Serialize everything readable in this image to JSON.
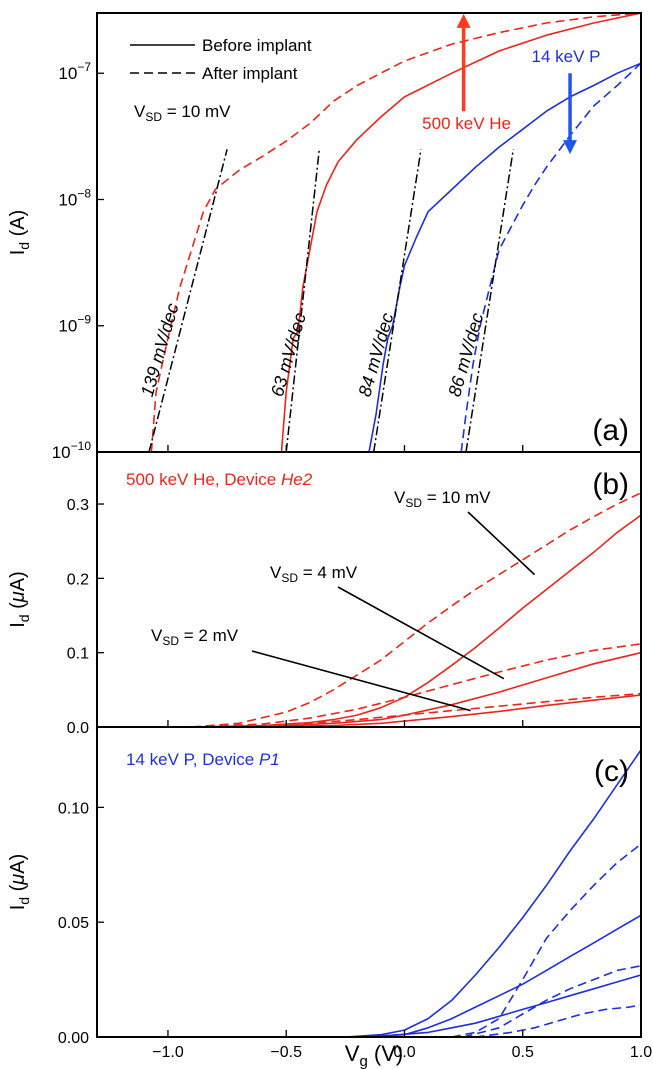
{
  "colors": {
    "red": "#e8261c",
    "blue": "#1f2fd6",
    "black": "#000000",
    "arrow_red": "#ff3b1f",
    "arrow_blue": "#1f56ee"
  },
  "chart_data": [
    {
      "panel": "(a)",
      "type": "line",
      "yscale": "log",
      "xlim": [
        -1.3,
        1.0
      ],
      "ylim": [
        1e-10,
        3e-07
      ],
      "ylabel_main": "I",
      "ylabel_sub": "d",
      "ylabel_unit": "(A)",
      "yticks": [
        {
          "value": 1e-07,
          "base": "10",
          "exp": "−7"
        },
        {
          "value": 1e-08,
          "base": "10",
          "exp": "−8"
        },
        {
          "value": 1e-09,
          "base": "10",
          "exp": "−9"
        },
        {
          "value": 1e-10,
          "base": "10",
          "exp": "−10"
        }
      ],
      "legend": [
        {
          "style": "solid",
          "label": "Before implant"
        },
        {
          "style": "dashed",
          "label": "After implant"
        }
      ],
      "vsd_note": {
        "main": "V",
        "sub": "SD",
        "rest": " = 10 mV"
      },
      "arrows": [
        {
          "label": "500 keV He",
          "direction": "up",
          "x": 0.25,
          "y_from": 5e-08,
          "y_to": 2.6e-07,
          "color": "arrow_red"
        },
        {
          "label": "14 keV P",
          "direction": "down",
          "x": 0.7,
          "y_from": 1e-07,
          "y_to": 2.6e-08,
          "color": "arrow_blue"
        }
      ],
      "series": [
        {
          "name": "He before",
          "color": "red",
          "style": "solid",
          "x": [
            -0.52,
            -0.5,
            -0.47,
            -0.45,
            -0.43,
            -0.4,
            -0.37,
            -0.33,
            -0.28,
            -0.2,
            -0.1,
            0.0,
            0.2,
            0.4,
            0.6,
            0.8,
            1.0
          ],
          "y": [
            1e-10,
            3e-10,
            8e-10,
            9e-10,
            2e-09,
            4e-09,
            8e-09,
            1.3e-08,
            2e-08,
            3e-08,
            4.5e-08,
            6.5e-08,
            1e-07,
            1.5e-07,
            2e-07,
            2.5e-07,
            3e-07
          ]
        },
        {
          "name": "He after",
          "color": "red",
          "style": "dashed",
          "x": [
            -1.07,
            -1.05,
            -1.0,
            -0.95,
            -0.9,
            -0.85,
            -0.8,
            -0.7,
            -0.6,
            -0.5,
            -0.4,
            -0.3,
            -0.2,
            -0.1,
            0.0,
            0.2,
            0.4,
            0.6,
            0.8,
            1.0
          ],
          "y": [
            1e-10,
            3e-10,
            8e-10,
            2e-09,
            4e-09,
            8e-09,
            1.2e-08,
            1.7e-08,
            2.2e-08,
            2.9e-08,
            4e-08,
            6e-08,
            8e-08,
            1e-07,
            1.25e-07,
            1.7e-07,
            2.1e-07,
            2.5e-07,
            2.8e-07,
            3e-07
          ]
        },
        {
          "name": "P before",
          "color": "blue",
          "style": "solid",
          "x": [
            -0.15,
            -0.12,
            -0.09,
            -0.07,
            -0.05,
            -0.02,
            0.0,
            0.05,
            0.1,
            0.2,
            0.3,
            0.4,
            0.5,
            0.6,
            0.7,
            0.8,
            0.9,
            1.0
          ],
          "y": [
            1e-10,
            2e-10,
            5e-10,
            8e-10,
            1e-09,
            2e-09,
            3e-09,
            5e-09,
            8e-09,
            1.2e-08,
            1.8e-08,
            2.6e-08,
            3.6e-08,
            5e-08,
            6.5e-08,
            8e-08,
            1e-07,
            1.2e-07
          ]
        },
        {
          "name": "P after",
          "color": "blue",
          "style": "dashed",
          "x": [
            0.24,
            0.26,
            0.29,
            0.32,
            0.36,
            0.4,
            0.45,
            0.5,
            0.55,
            0.6,
            0.7,
            0.8,
            0.9,
            1.0
          ],
          "y": [
            1e-10,
            2e-10,
            5e-10,
            1e-09,
            2e-09,
            4e-09,
            6e-09,
            9e-09,
            1.3e-08,
            1.8e-08,
            3.2e-08,
            5.5e-08,
            8e-08,
            1.2e-07
          ]
        },
        {
          "name": "fit 139",
          "color": "black",
          "style": "dashdot",
          "x": [
            -1.08,
            -0.75
          ],
          "y": [
            1e-10,
            2.5e-08
          ]
        },
        {
          "name": "fit 63",
          "color": "black",
          "style": "dashdot",
          "x": [
            -0.5,
            -0.36
          ],
          "y": [
            1e-10,
            2.5e-08
          ]
        },
        {
          "name": "fit 84",
          "color": "black",
          "style": "dashdot",
          "x": [
            -0.13,
            0.07
          ],
          "y": [
            1e-10,
            2.5e-08
          ]
        },
        {
          "name": "fit 86",
          "color": "black",
          "style": "dashdot",
          "x": [
            0.26,
            0.46
          ],
          "y": [
            1e-10,
            2.5e-08
          ]
        }
      ],
      "slope_labels": [
        {
          "text": "139 mV/dec",
          "x": -1.1,
          "y": 1.8e-10
        },
        {
          "text": "63 mV/dec",
          "x": -0.55,
          "y": 1.8e-10
        },
        {
          "text": "84 mV/dec",
          "x": -0.18,
          "y": 1.8e-10
        },
        {
          "text": "86 mV/dec",
          "x": 0.2,
          "y": 1.8e-10
        }
      ]
    },
    {
      "panel": "(b)",
      "type": "line",
      "xlim": [
        -1.3,
        1.0
      ],
      "ylim": [
        0,
        0.37
      ],
      "ylabel_main": "I",
      "ylabel_sub": "d",
      "ylabel_mu": "μ",
      "ylabel_unit_tail": "A)",
      "yticks": [
        {
          "value": 0.0,
          "label": "0.0"
        },
        {
          "value": 0.1,
          "label": "0.1"
        },
        {
          "value": 0.2,
          "label": "0.2"
        },
        {
          "value": 0.3,
          "label": "0.3"
        }
      ],
      "title_plain": "500 keV He, Device ",
      "title_ital": "He2",
      "annotations": [
        {
          "main": "V",
          "sub": "SD",
          "rest": " = 10 mV",
          "line_to": [
            0.55,
            0.205
          ]
        },
        {
          "main": "V",
          "sub": "SD",
          "rest": " = 4 mV",
          "line_to": [
            0.42,
            0.065
          ]
        },
        {
          "main": "V",
          "sub": "SD",
          "rest": " = 2 mV",
          "line_to": [
            0.28,
            0.022
          ]
        }
      ],
      "series": [
        {
          "name": "10 mV before",
          "color": "red",
          "style": "solid",
          "x": [
            -0.9,
            -0.6,
            -0.4,
            -0.3,
            -0.2,
            -0.1,
            0.0,
            0.1,
            0.2,
            0.3,
            0.4,
            0.5,
            0.6,
            0.7,
            0.8,
            0.9,
            1.0
          ],
          "y": [
            0.0,
            0.002,
            0.006,
            0.01,
            0.016,
            0.026,
            0.04,
            0.06,
            0.083,
            0.107,
            0.133,
            0.16,
            0.185,
            0.21,
            0.235,
            0.262,
            0.285
          ]
        },
        {
          "name": "10 mV after",
          "color": "red",
          "style": "dashed",
          "x": [
            -0.9,
            -0.7,
            -0.5,
            -0.4,
            -0.3,
            -0.2,
            -0.1,
            0.0,
            0.1,
            0.2,
            0.3,
            0.4,
            0.5,
            0.6,
            0.7,
            0.8,
            0.9,
            1.0
          ],
          "y": [
            0.0,
            0.005,
            0.02,
            0.033,
            0.05,
            0.07,
            0.09,
            0.115,
            0.14,
            0.163,
            0.185,
            0.205,
            0.225,
            0.245,
            0.265,
            0.283,
            0.3,
            0.315
          ]
        },
        {
          "name": "4 mV before",
          "color": "red",
          "style": "solid",
          "x": [
            -0.9,
            -0.5,
            -0.3,
            -0.1,
            0.0,
            0.2,
            0.4,
            0.6,
            0.8,
            1.0
          ],
          "y": [
            0.0,
            0.002,
            0.005,
            0.01,
            0.016,
            0.03,
            0.047,
            0.066,
            0.085,
            0.1
          ]
        },
        {
          "name": "4 mV after",
          "color": "red",
          "style": "dashed",
          "x": [
            -0.9,
            -0.6,
            -0.4,
            -0.2,
            0.0,
            0.2,
            0.4,
            0.6,
            0.8,
            1.0
          ],
          "y": [
            0.0,
            0.004,
            0.012,
            0.024,
            0.04,
            0.057,
            0.074,
            0.09,
            0.103,
            0.112
          ]
        },
        {
          "name": "2 mV before",
          "color": "red",
          "style": "solid",
          "x": [
            -0.9,
            -0.5,
            -0.3,
            -0.1,
            0.0,
            0.2,
            0.4,
            0.6,
            0.8,
            1.0
          ],
          "y": [
            0.0,
            0.001,
            0.002,
            0.005,
            0.008,
            0.014,
            0.021,
            0.029,
            0.036,
            0.043
          ]
        },
        {
          "name": "2 mV after",
          "color": "red",
          "style": "dashed",
          "x": [
            -0.9,
            -0.6,
            -0.4,
            -0.2,
            0.0,
            0.2,
            0.4,
            0.6,
            0.8,
            1.0
          ],
          "y": [
            0.0,
            0.002,
            0.005,
            0.01,
            0.016,
            0.022,
            0.028,
            0.034,
            0.04,
            0.045
          ]
        }
      ]
    },
    {
      "panel": "(c)",
      "type": "line",
      "xlim": [
        -1.3,
        1.0
      ],
      "ylim": [
        0,
        0.135
      ],
      "ylabel_main": "I",
      "ylabel_sub": "d",
      "ylabel_mu": "μ",
      "ylabel_unit_tail": "A)",
      "yticks": [
        {
          "value": 0.0,
          "label": "0.00"
        },
        {
          "value": 0.05,
          "label": "0.05"
        },
        {
          "value": 0.1,
          "label": "0.10"
        }
      ],
      "xticks": [
        {
          "value": -1.0,
          "label": "−1.0"
        },
        {
          "value": -0.5,
          "label": "−0.5"
        },
        {
          "value": 0.0,
          "label": "0.0"
        },
        {
          "value": 0.5,
          "label": "0.5"
        },
        {
          "value": 1.0,
          "label": "1.0"
        }
      ],
      "xlabel_main": "V",
      "xlabel_sub": "g",
      "xlabel_unit": "(V)",
      "title_plain": "14 keV P, Device ",
      "title_ital": "P1",
      "series": [
        {
          "name": "10 mV before",
          "color": "blue",
          "style": "solid",
          "x": [
            -0.25,
            -0.1,
            0.0,
            0.1,
            0.2,
            0.3,
            0.4,
            0.5,
            0.6,
            0.7,
            0.8,
            0.9,
            1.0
          ],
          "y": [
            0.0,
            0.001,
            0.003,
            0.008,
            0.016,
            0.027,
            0.039,
            0.052,
            0.066,
            0.081,
            0.095,
            0.11,
            0.125
          ]
        },
        {
          "name": "10 mV after",
          "color": "blue",
          "style": "dashed",
          "x": [
            0.2,
            0.3,
            0.4,
            0.5,
            0.6,
            0.7,
            0.8,
            0.9,
            1.0
          ],
          "y": [
            0.0,
            0.002,
            0.008,
            0.025,
            0.043,
            0.055,
            0.066,
            0.076,
            0.084
          ]
        },
        {
          "name": "4 mV before",
          "color": "blue",
          "style": "solid",
          "x": [
            -0.2,
            0.0,
            0.1,
            0.2,
            0.3,
            0.4,
            0.5,
            0.6,
            0.7,
            0.8,
            0.9,
            1.0
          ],
          "y": [
            0.0,
            0.001,
            0.004,
            0.008,
            0.013,
            0.018,
            0.023,
            0.029,
            0.035,
            0.041,
            0.047,
            0.053
          ]
        },
        {
          "name": "4 mV after",
          "color": "blue",
          "style": "dashed",
          "x": [
            0.25,
            0.4,
            0.5,
            0.6,
            0.7,
            0.8,
            0.9,
            1.0
          ],
          "y": [
            0.0,
            0.004,
            0.01,
            0.016,
            0.021,
            0.025,
            0.029,
            0.031
          ]
        },
        {
          "name": "2 mV before",
          "color": "blue",
          "style": "solid",
          "x": [
            -0.15,
            0.1,
            0.2,
            0.3,
            0.4,
            0.5,
            0.6,
            0.7,
            0.8,
            0.9,
            1.0
          ],
          "y": [
            0.0,
            0.002,
            0.004,
            0.006,
            0.009,
            0.012,
            0.015,
            0.018,
            0.021,
            0.024,
            0.027
          ]
        },
        {
          "name": "2 mV after",
          "color": "blue",
          "style": "dashed",
          "x": [
            0.3,
            0.45,
            0.55,
            0.65,
            0.75,
            0.85,
            0.95,
            1.0
          ],
          "y": [
            0.0,
            0.002,
            0.004,
            0.007,
            0.01,
            0.012,
            0.013,
            0.014
          ]
        }
      ]
    }
  ]
}
